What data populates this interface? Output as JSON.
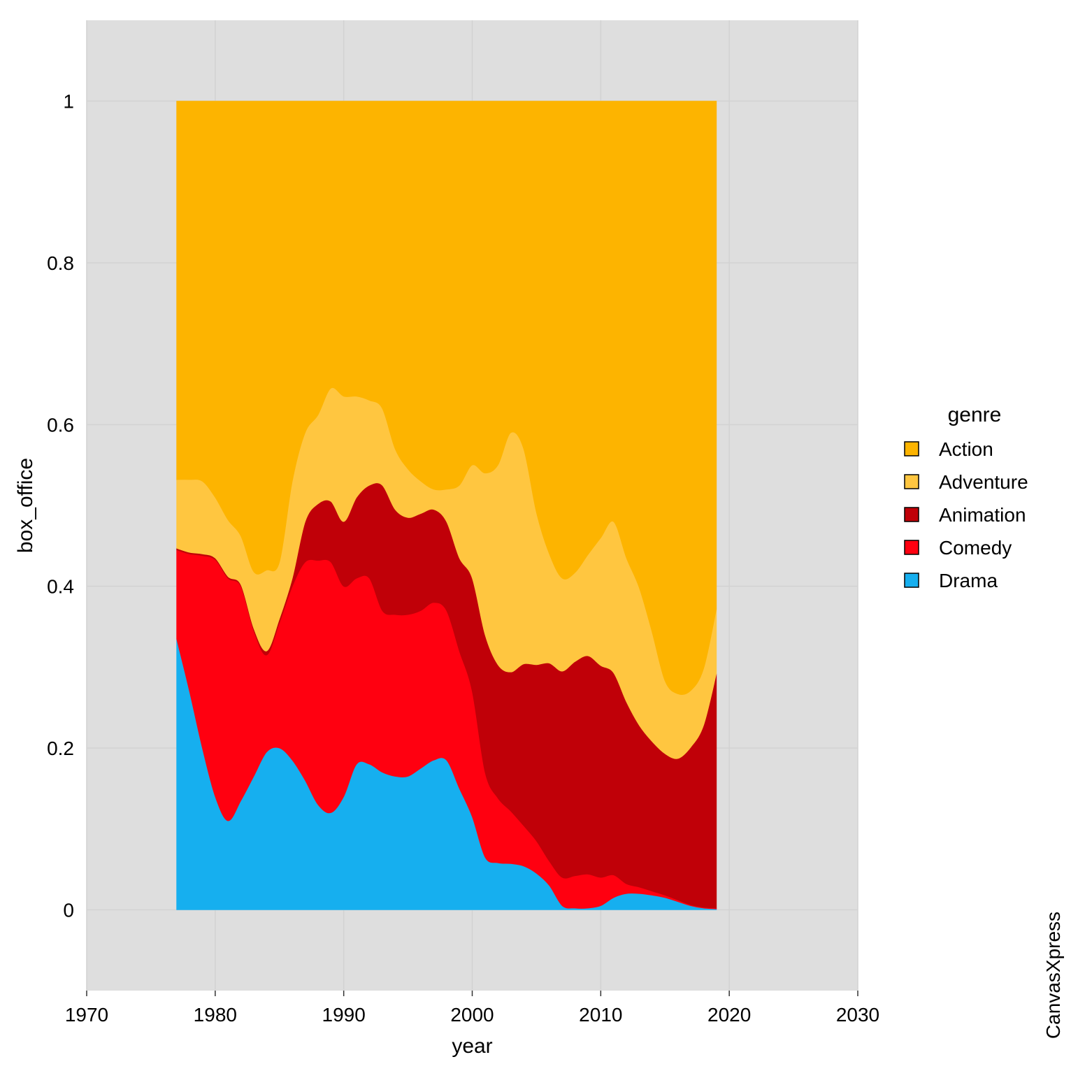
{
  "chart_data": {
    "type": "area",
    "stacked": "percent",
    "xlabel": "year",
    "ylabel": "box_office",
    "xlim": [
      1970,
      2030
    ],
    "ylim": [
      -0.1,
      1.1
    ],
    "x_ticks": [
      1970,
      1980,
      1990,
      2000,
      2010,
      2020,
      2030
    ],
    "y_ticks": [
      0,
      0.2,
      0.4,
      0.6,
      0.8,
      1
    ],
    "y_tick_labels": [
      "0",
      "0.2",
      "0.4",
      "0.6",
      "0.8",
      "1"
    ],
    "grid": true,
    "legend": {
      "title": "genre",
      "position": "right"
    },
    "x": [
      1977,
      1978,
      1979,
      1980,
      1981,
      1982,
      1983,
      1984,
      1985,
      1986,
      1987,
      1988,
      1989,
      1990,
      1991,
      1992,
      1993,
      1994,
      1995,
      1996,
      1997,
      1998,
      1999,
      2000,
      2001,
      2002,
      2003,
      2004,
      2005,
      2006,
      2007,
      2008,
      2009,
      2010,
      2011,
      2012,
      2013,
      2014,
      2015,
      2016,
      2017,
      2018,
      2019
    ],
    "series": [
      {
        "name": "Drama",
        "color": "#16AFEF",
        "values": [
          0.335,
          0.27,
          0.2,
          0.14,
          0.11,
          0.135,
          0.165,
          0.195,
          0.2,
          0.185,
          0.16,
          0.13,
          0.12,
          0.14,
          0.18,
          0.18,
          0.17,
          0.165,
          0.165,
          0.175,
          0.185,
          0.185,
          0.15,
          0.115,
          0.065,
          0.058,
          0.057,
          0.054,
          0.045,
          0.03,
          0.005,
          0.002,
          0.002,
          0.005,
          0.015,
          0.02,
          0.02,
          0.018,
          0.015,
          0.01,
          0.005,
          0.002,
          0.001
        ]
      },
      {
        "name": "Comedy",
        "color": "#FF0010",
        "values": [
          0.11,
          0.17,
          0.238,
          0.293,
          0.3,
          0.265,
          0.18,
          0.12,
          0.155,
          0.215,
          0.27,
          0.302,
          0.31,
          0.26,
          0.23,
          0.23,
          0.2,
          0.2,
          0.2,
          0.195,
          0.195,
          0.185,
          0.17,
          0.155,
          0.105,
          0.08,
          0.065,
          0.05,
          0.04,
          0.03,
          0.035,
          0.04,
          0.042,
          0.035,
          0.028,
          0.012,
          0.008,
          0.005,
          0.003,
          0.002,
          0.001,
          0.001,
          0.001
        ]
      },
      {
        "name": "Animation",
        "color": "#C00008",
        "values": [
          0.002,
          0.002,
          0.002,
          0.002,
          0.002,
          0.002,
          0.003,
          0.005,
          0.005,
          0.01,
          0.05,
          0.07,
          0.075,
          0.08,
          0.1,
          0.115,
          0.155,
          0.13,
          0.12,
          0.12,
          0.115,
          0.11,
          0.115,
          0.14,
          0.17,
          0.165,
          0.172,
          0.2,
          0.218,
          0.245,
          0.255,
          0.265,
          0.27,
          0.262,
          0.25,
          0.225,
          0.2,
          0.185,
          0.175,
          0.175,
          0.195,
          0.225,
          0.29
        ]
      },
      {
        "name": "Adventure",
        "color": "#FFC640",
        "values": [
          0.085,
          0.09,
          0.09,
          0.075,
          0.07,
          0.06,
          0.07,
          0.1,
          0.07,
          0.12,
          0.11,
          0.11,
          0.14,
          0.155,
          0.125,
          0.105,
          0.095,
          0.075,
          0.06,
          0.04,
          0.025,
          0.04,
          0.09,
          0.14,
          0.2,
          0.247,
          0.296,
          0.266,
          0.188,
          0.135,
          0.115,
          0.11,
          0.125,
          0.158,
          0.187,
          0.178,
          0.17,
          0.135,
          0.09,
          0.08,
          0.07,
          0.07,
          0.08
        ]
      },
      {
        "name": "Action",
        "color": "#FDB400",
        "values": [
          0.468,
          0.468,
          0.47,
          0.49,
          0.518,
          0.538,
          0.582,
          0.58,
          0.57,
          0.47,
          0.41,
          0.388,
          0.355,
          0.365,
          0.365,
          0.37,
          0.38,
          0.43,
          0.455,
          0.47,
          0.48,
          0.48,
          0.475,
          0.45,
          0.46,
          0.45,
          0.41,
          0.43,
          0.509,
          0.56,
          0.59,
          0.583,
          0.561,
          0.54,
          0.52,
          0.565,
          0.602,
          0.657,
          0.717,
          0.733,
          0.729,
          0.702,
          0.628
        ]
      }
    ],
    "legend_order": [
      "Action",
      "Adventure",
      "Animation",
      "Comedy",
      "Drama"
    ],
    "background_color": "#DEDEDE",
    "grid_color": "#D2D2D2"
  },
  "watermark": "CanvasXpress"
}
